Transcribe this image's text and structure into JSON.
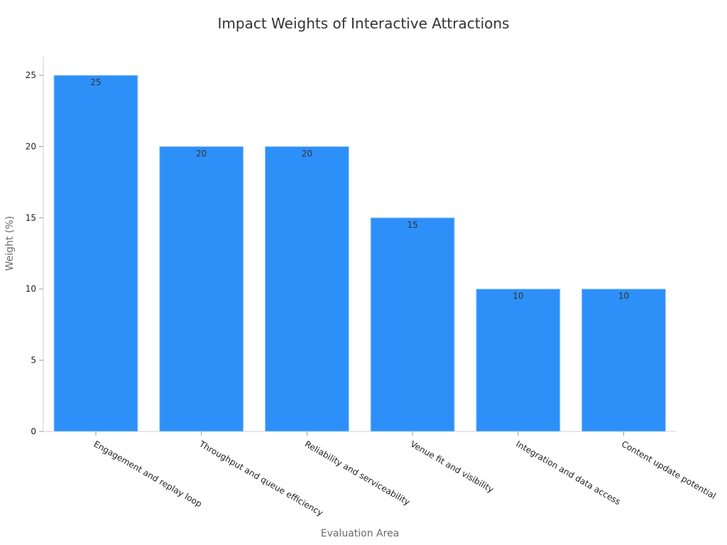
{
  "chart_data": {
    "type": "bar",
    "title": "Impact Weights of Interactive Attractions",
    "xlabel": "Evaluation Area",
    "ylabel": "Weight (%)",
    "categories": [
      "Engagement and replay loop",
      "Throughput and queue efficiency",
      "Reliability and serviceability",
      "Venue fit and visibility",
      "Integration and data access",
      "Content update potential"
    ],
    "values": [
      25,
      20,
      20,
      15,
      10,
      10
    ],
    "ylim": [
      0,
      26.3
    ],
    "yticks": [
      0,
      5,
      10,
      15,
      20,
      25
    ],
    "grid": false,
    "legend": "none",
    "bar_color": "#2d90f8",
    "bar_edge_color": "#a9cffb"
  }
}
